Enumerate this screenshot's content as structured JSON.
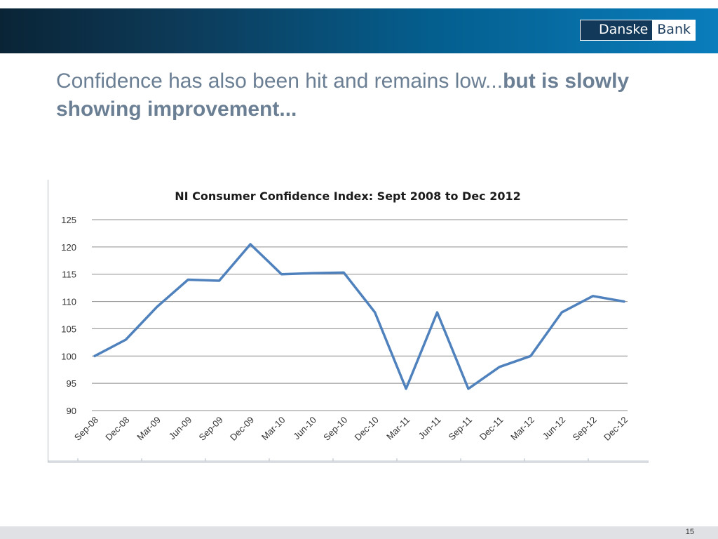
{
  "slide": {
    "title_regular": "Confidence has also been hit and remains low...",
    "title_bold": "but is slowly showing  improvement...",
    "page_number": "15"
  },
  "logo": {
    "left_text": "Danske",
    "right_text": "Bank"
  },
  "colors": {
    "header_dark": "#0a2436",
    "header_light": "#0a7dbc",
    "line": "#4f81bd"
  },
  "chart_data": {
    "type": "line",
    "title": "NI Consumer Confidence Index:  Sept 2008 to Dec 2012",
    "categories": [
      "Sep-08",
      "Dec-08",
      "Mar-09",
      "Jun-09",
      "Sep-09",
      "Dec-09",
      "Mar-10",
      "Jun-10",
      "Sep-10",
      "Dec-10",
      "Mar-11",
      "Jun-11",
      "Sep-11",
      "Dec-11",
      "Mar-12",
      "Jun-12",
      "Sep-12",
      "Dec-12"
    ],
    "series": [
      {
        "values": [
          100,
          103,
          109,
          114,
          113.8,
          120.5,
          115,
          115.2,
          115.3,
          108,
          94,
          108,
          94,
          98,
          100,
          108,
          111,
          110
        ]
      }
    ],
    "ylim": [
      90,
      125
    ],
    "yticks": [
      90,
      95,
      100,
      105,
      110,
      115,
      120,
      125
    ],
    "grid": true,
    "legend": "none"
  }
}
